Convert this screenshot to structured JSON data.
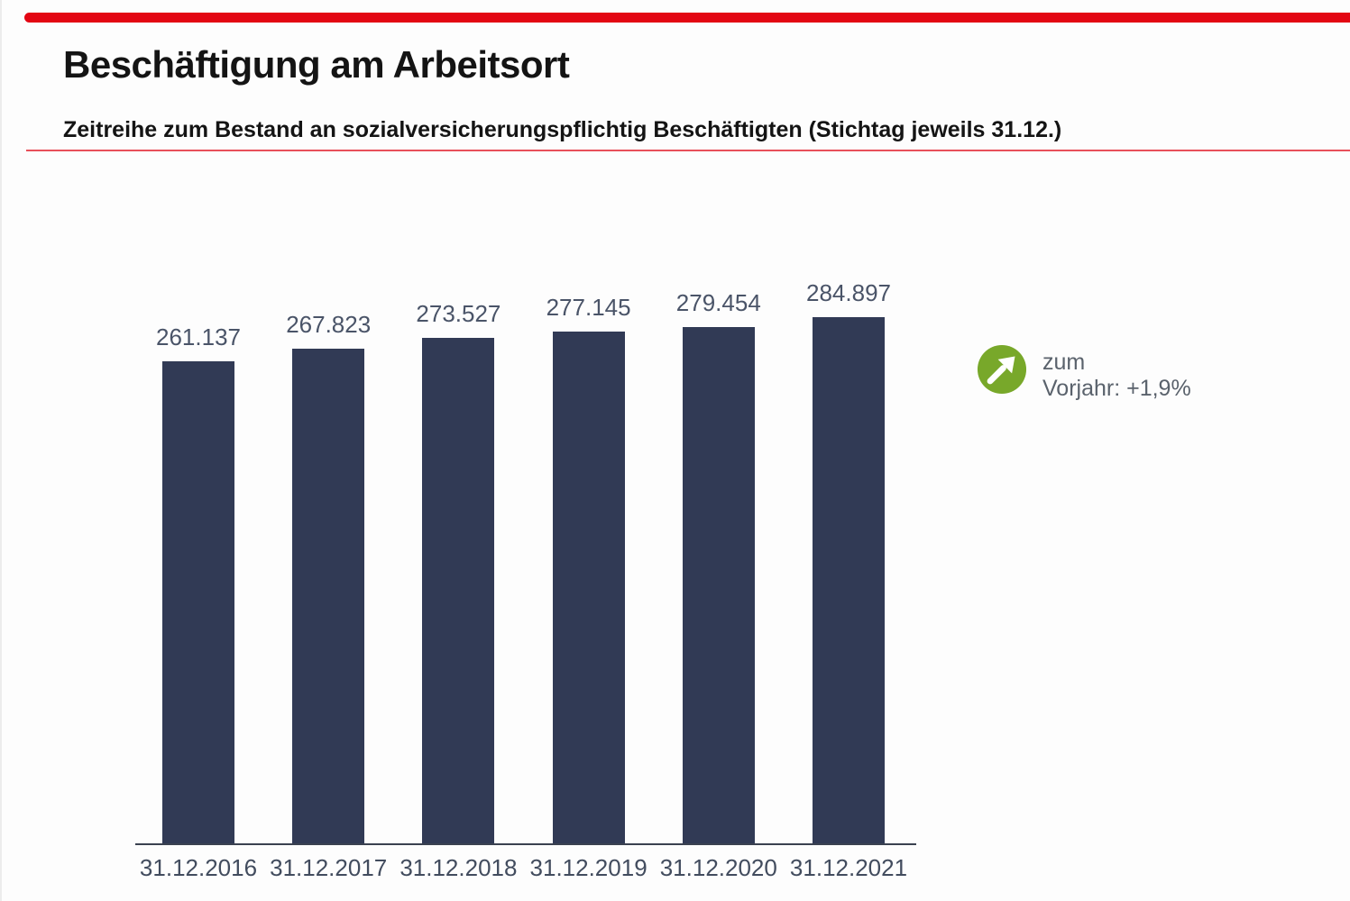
{
  "header": {
    "title": "Beschäftigung am Arbeitsort",
    "subtitle": "Zeitreihe zum Bestand an sozialversicherungspflichtig Beschäftigten (Stichtag jeweils 31.12.)"
  },
  "chart_data": {
    "type": "bar",
    "title": "",
    "xlabel": "",
    "ylabel": "",
    "categories": [
      "31.12.2016",
      "31.12.2017",
      "31.12.2018",
      "31.12.2019",
      "31.12.2020",
      "31.12.2021"
    ],
    "values": [
      261137,
      267823,
      273527,
      277145,
      279454,
      284897
    ],
    "value_labels": [
      "261.137",
      "267.823",
      "273.527",
      "277.145",
      "279.454",
      "284.897"
    ],
    "ylim": [
      0,
      284897
    ],
    "grid": false,
    "legend": false,
    "bar_color": "#313a55"
  },
  "trend_badge": {
    "icon": "trend-up-arrow",
    "line1": "zum",
    "line2": "Vorjahr: +1,9%",
    "circle_color": "#78a82a"
  },
  "colors": {
    "accent_red": "#e30613",
    "divider_red": "#e8505a",
    "bar_navy": "#313a55",
    "value_label_gray": "#4a5468",
    "tick_label_gray": "#424c5e",
    "axis_dark": "#3a4150",
    "badge_green": "#78a82a",
    "badge_text_gray": "#5a626c"
  }
}
